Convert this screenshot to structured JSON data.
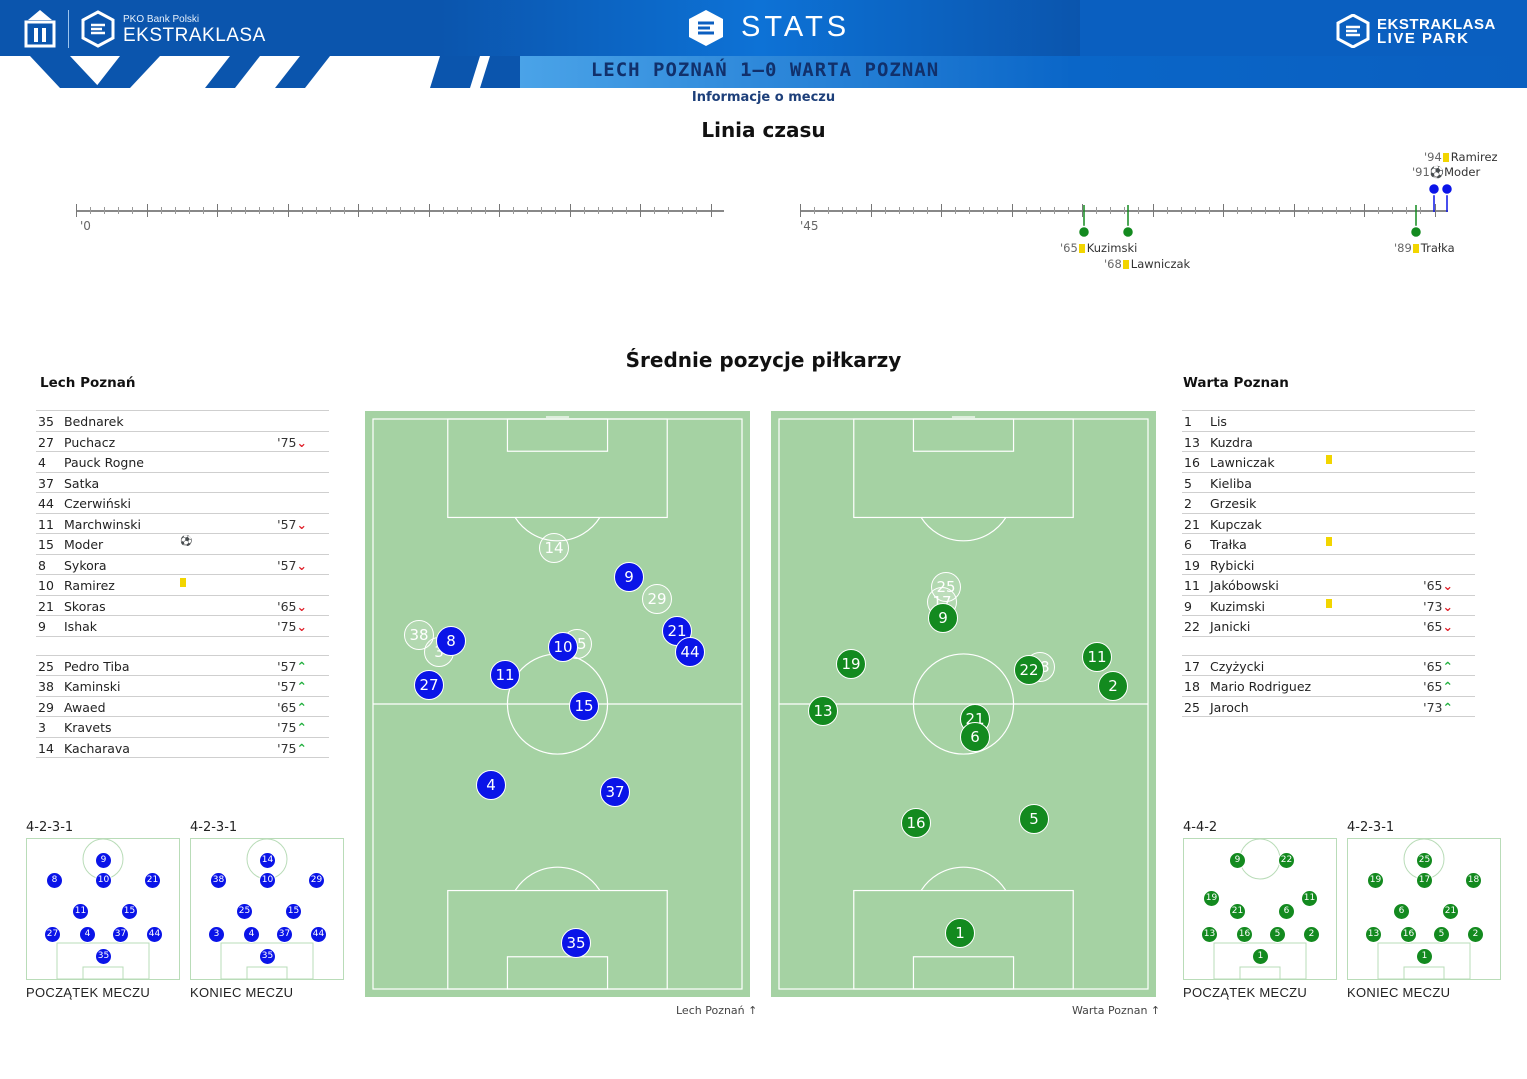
{
  "header": {
    "pko_small": "PKO Bank Polski",
    "league": "EKSTRAKLASA",
    "stats": "STATS",
    "live_line1": "EKSTRAKLASA",
    "live_line2": "LIVE PARK",
    "match_title": "LECH POZNAŃ 1–0 WARTA POZNAN",
    "info_link": "Informacje o meczu",
    "colors": {
      "primary": "#0a5fc0",
      "title": "#11306b",
      "home": "#0a14e8",
      "away": "#138a1f",
      "pitch": "#a5d2a3",
      "yellow": "#f2d500"
    }
  },
  "timeline": {
    "title": "Linia czasu",
    "first_half_label": "'0",
    "second_half_label": "'45",
    "events": [
      {
        "minute": "'65",
        "player": "Kuzimski",
        "type": "yellow-card",
        "team": "away"
      },
      {
        "minute": "'68",
        "player": "Lawniczak",
        "type": "yellow-card",
        "team": "away"
      },
      {
        "minute": "'89",
        "player": "Trałka",
        "type": "yellow-card",
        "team": "away"
      },
      {
        "minute": "'91",
        "player": "Moder",
        "type": "goal",
        "team": "home"
      },
      {
        "minute": "'94",
        "player": "Ramirez",
        "type": "yellow-card",
        "team": "home"
      }
    ]
  },
  "positions_title": "Średnie pozycje piłkarzy",
  "home": {
    "name": "Lech Poznań",
    "starters": [
      {
        "num": "35",
        "name": "Bednarek",
        "sub": ""
      },
      {
        "num": "27",
        "name": "Puchacz",
        "sub": "'75"
      },
      {
        "num": "4",
        "name": "Pauck Rogne",
        "sub": ""
      },
      {
        "num": "37",
        "name": "Satka",
        "sub": ""
      },
      {
        "num": "44",
        "name": "Czerwiński",
        "sub": ""
      },
      {
        "num": "11",
        "name": "Marchwinski",
        "sub": "'57"
      },
      {
        "num": "15",
        "name": "Moder",
        "sub": "",
        "goal": true
      },
      {
        "num": "8",
        "name": "Sykora",
        "sub": "'57"
      },
      {
        "num": "10",
        "name": "Ramirez",
        "sub": "",
        "card": true
      },
      {
        "num": "21",
        "name": "Skoras",
        "sub": "'65"
      },
      {
        "num": "9",
        "name": "Ishak",
        "sub": "'75"
      }
    ],
    "bench": [
      {
        "num": "25",
        "name": "Pedro Tiba",
        "sub": "'57"
      },
      {
        "num": "38",
        "name": "Kaminski",
        "sub": "'57"
      },
      {
        "num": "29",
        "name": "Awaed",
        "sub": "'65"
      },
      {
        "num": "3",
        "name": "Kravets",
        "sub": "'75"
      },
      {
        "num": "14",
        "name": "Kacharava",
        "sub": "'75"
      }
    ],
    "pitch_caption": "Lech Poznań",
    "formation_start": "4-2-3-1",
    "formation_end": "4-2-3-1"
  },
  "away": {
    "name": "Warta Poznan",
    "starters": [
      {
        "num": "1",
        "name": "Lis",
        "sub": ""
      },
      {
        "num": "13",
        "name": "Kuzdra",
        "sub": ""
      },
      {
        "num": "16",
        "name": "Lawniczak",
        "sub": "",
        "card": true
      },
      {
        "num": "5",
        "name": "Kieliba",
        "sub": ""
      },
      {
        "num": "2",
        "name": "Grzesik",
        "sub": ""
      },
      {
        "num": "21",
        "name": "Kupczak",
        "sub": ""
      },
      {
        "num": "6",
        "name": "Trałka",
        "sub": "",
        "card": true
      },
      {
        "num": "19",
        "name": "Rybicki",
        "sub": ""
      },
      {
        "num": "11",
        "name": "Jakóbowski",
        "sub": "'65"
      },
      {
        "num": "9",
        "name": "Kuzimski",
        "sub": "'73",
        "card": true
      },
      {
        "num": "22",
        "name": "Janicki",
        "sub": "'65"
      }
    ],
    "bench": [
      {
        "num": "17",
        "name": "Czyżycki",
        "sub": "'65"
      },
      {
        "num": "18",
        "name": "Mario Rodriguez",
        "sub": "'65"
      },
      {
        "num": "25",
        "name": "Jaroch",
        "sub": "'73"
      }
    ],
    "pitch_caption": "Warta Poznan",
    "formation_start": "4-4-2",
    "formation_end": "4-2-3-1"
  },
  "captions": {
    "start": "POCZĄTEK MECZU",
    "end": "KONIEC MECZU"
  }
}
